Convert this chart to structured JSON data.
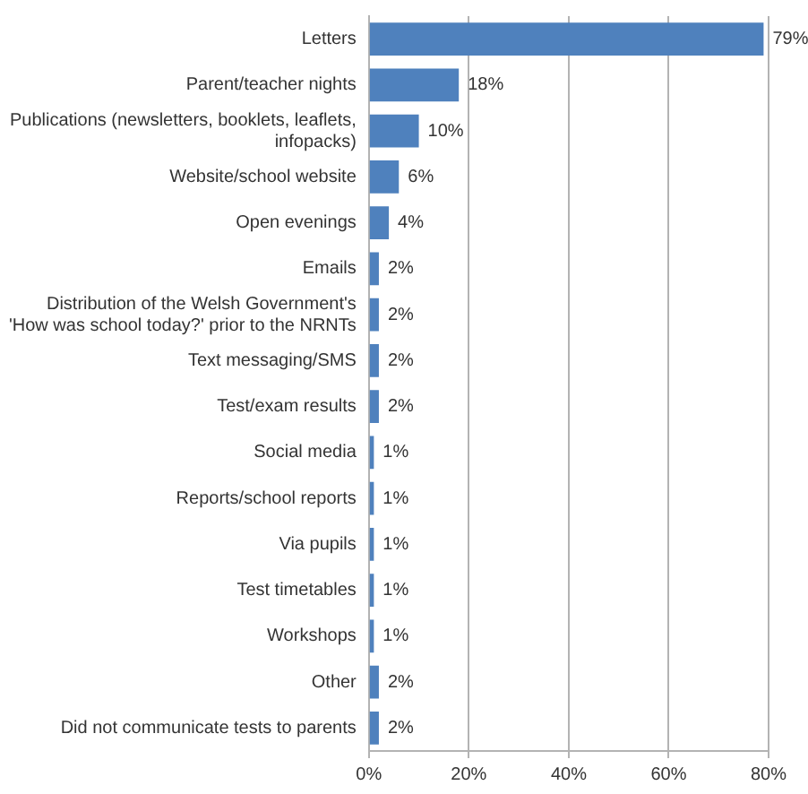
{
  "chart_data": {
    "type": "bar",
    "orientation": "horizontal",
    "categories": [
      "Letters",
      "Parent/teacher nights",
      "Publications (newsletters, booklets, leaflets, infopacks)",
      "Website/school website",
      "Open evenings",
      "Emails",
      "Distribution of the Welsh Government's 'How was school today?' prior to the NRNTs",
      "Text messaging/SMS",
      "Test/exam results",
      "Social media",
      "Reports/school reports",
      "Via pupils",
      "Test timetables",
      "Workshops",
      "Other",
      "Did not communicate tests to parents"
    ],
    "values": [
      79,
      18,
      10,
      6,
      4,
      2,
      2,
      2,
      2,
      1,
      1,
      1,
      1,
      1,
      2,
      2
    ],
    "value_labels": [
      "79%",
      "18%",
      "10%",
      "6%",
      "4%",
      "2%",
      "2%",
      "2%",
      "2%",
      "1%",
      "1%",
      "1%",
      "1%",
      "1%",
      "2%",
      "2%"
    ],
    "color": "#4f81bd",
    "xlim": [
      0,
      80
    ],
    "xticks": [
      {
        "value": 0,
        "label": "0%"
      },
      {
        "value": 20,
        "label": "20%"
      },
      {
        "value": 40,
        "label": "40%"
      },
      {
        "value": 60,
        "label": "60%"
      },
      {
        "value": 80,
        "label": "80%"
      }
    ],
    "grid": "x",
    "legend": false
  }
}
